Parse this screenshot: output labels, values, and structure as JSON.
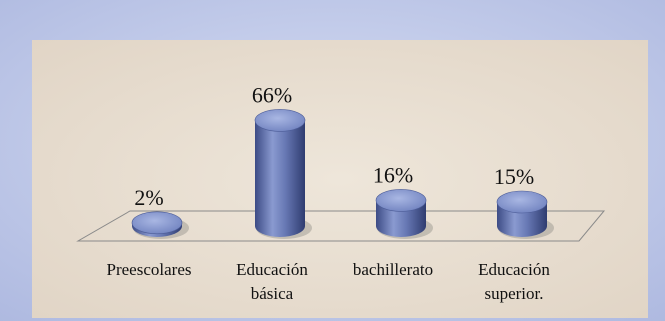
{
  "chart_data": {
    "type": "bar",
    "categories": [
      "Preescolares",
      "Educación básica",
      "bachillerato",
      "Educación superior."
    ],
    "category_lines": [
      [
        "Preescolares"
      ],
      [
        "Educación",
        "básica"
      ],
      [
        "bachillerato"
      ],
      [
        "Educación",
        "superior."
      ]
    ],
    "values": [
      2,
      66,
      16,
      15
    ],
    "value_labels": [
      "2%",
      "66%",
      "16%",
      "15%"
    ],
    "ylim": [
      0,
      70
    ],
    "grid": false,
    "legend": "none",
    "title": "",
    "xlabel": "",
    "ylabel": ""
  },
  "colors": {
    "bar_top": "#8e9fd3",
    "bar_side_light": "#8394cc",
    "bar_side_dark": "#3a4a82",
    "panel": "#e9dfd2",
    "background": "#b9c5e6"
  }
}
